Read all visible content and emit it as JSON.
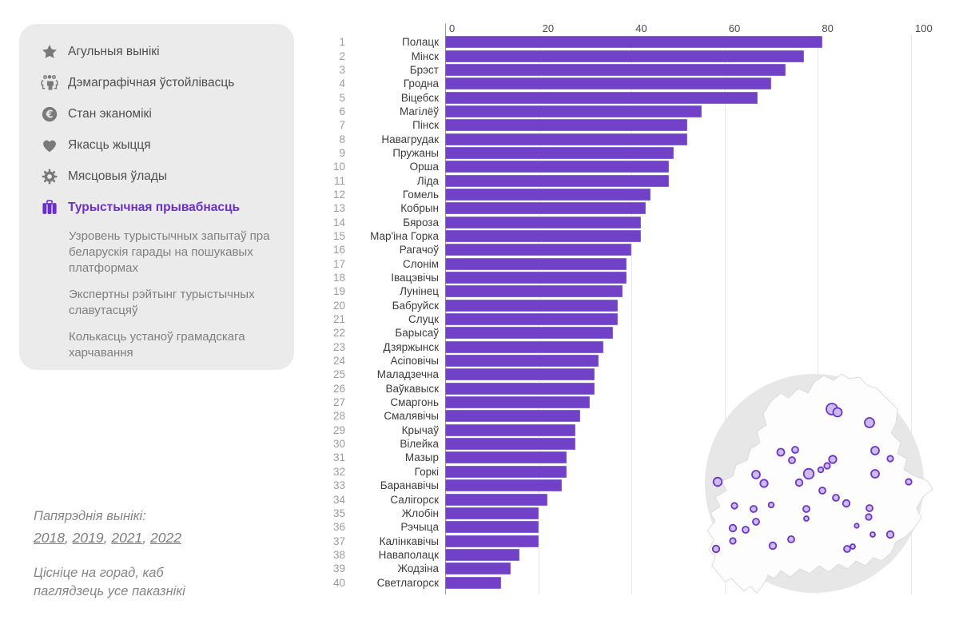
{
  "sidebar": {
    "items": [
      {
        "label": "Агульныя вынікі",
        "icon": "star-icon",
        "active": false
      },
      {
        "label": "Дэмаграфічная ўстойлівасць",
        "icon": "people-icon",
        "active": false
      },
      {
        "label": "Стан эканомікі",
        "icon": "euro-coin-icon",
        "active": false
      },
      {
        "label": "Якасць жыцця",
        "icon": "heart-icon",
        "active": false
      },
      {
        "label": "Мясцовыя ўлады",
        "icon": "gear-icon",
        "active": false
      },
      {
        "label": "Турыстычная прывабнасць",
        "icon": "suitcase-icon",
        "active": true
      }
    ],
    "subitems": [
      "Узровень турыстычных запытаў пра беларускія гарады на пошукавых платформах",
      "Экспертны рэйтынг турыстычных славутасцяў",
      "Колькасць устаноў грамадскага харчавання"
    ]
  },
  "footer": {
    "previous_label": "Папярэднія вынікі:",
    "years": [
      "2018",
      "2019",
      "2021",
      "2022"
    ],
    "hint": "Цісніце на горад, каб паглядзець усе паказнікі"
  },
  "chart_data": {
    "type": "bar",
    "orientation": "horizontal",
    "title": "",
    "xlabel": "",
    "ylabel": "",
    "xlim": [
      0,
      100
    ],
    "xticks": [
      0,
      20,
      40,
      60,
      80,
      100
    ],
    "grid": true,
    "bar_color": "#7142c8",
    "ranks": [
      1,
      2,
      3,
      4,
      5,
      6,
      7,
      8,
      9,
      10,
      11,
      12,
      13,
      14,
      15,
      16,
      17,
      18,
      19,
      20,
      21,
      22,
      23,
      24,
      25,
      26,
      27,
      28,
      29,
      30,
      31,
      32,
      33,
      34,
      35,
      36,
      37,
      38,
      39,
      40
    ],
    "categories": [
      "Полацк",
      "Мінск",
      "Брэст",
      "Гродна",
      "Віцебск",
      "Магілёў",
      "Пінск",
      "Навагрудак",
      "Пружаны",
      "Орша",
      "Ліда",
      "Гомель",
      "Кобрын",
      "Бяроза",
      "Мар'іна Горка",
      "Рагачоў",
      "Слонім",
      "Івацэвічы",
      "Лунінец",
      "Бабруйск",
      "Слуцк",
      "Барысаў",
      "Дзяржынск",
      "Асіповічы",
      "Маладзечна",
      "Ваўкавыск",
      "Смаргонь",
      "Смалявічы",
      "Крычаў",
      "Вілейка",
      "Мазыр",
      "Горкі",
      "Баранавічы",
      "Салігорск",
      "Жлобін",
      "Рэчыца",
      "Калінкавічы",
      "Наваполацк",
      "Жодзіна",
      "Светлагорск"
    ],
    "values": [
      81,
      77,
      73,
      70,
      67,
      55,
      52,
      52,
      49,
      48,
      48,
      44,
      43,
      42,
      42,
      40,
      39,
      39,
      38,
      37,
      37,
      36,
      34,
      33,
      32,
      32,
      31,
      29,
      28,
      28,
      26,
      26,
      25,
      22,
      20,
      20,
      20,
      16,
      14,
      12
    ]
  },
  "map": {
    "region": "Belarus",
    "background_color": "#e7e7e7",
    "country_fill": "#fdfdfd",
    "bubble_fill": "#cdbbee",
    "bubble_stroke": "#6b35c8",
    "bubbles": [
      [
        176,
        62,
        7
      ],
      [
        183,
        66,
        5.5
      ],
      [
        223,
        79,
        6
      ],
      [
        112,
        116,
        4.5
      ],
      [
        130,
        113,
        4
      ],
      [
        126,
        126,
        4
      ],
      [
        177,
        125,
        4.7
      ],
      [
        230,
        114,
        5
      ],
      [
        249,
        124,
        3.7
      ],
      [
        170,
        133,
        3.7
      ],
      [
        162,
        138,
        3.3
      ],
      [
        147,
        143,
        6.3
      ],
      [
        81,
        144,
        5
      ],
      [
        91,
        155,
        4.7
      ],
      [
        33,
        153,
        5.3
      ],
      [
        230,
        143,
        5
      ],
      [
        272,
        153,
        3.7
      ],
      [
        135,
        154,
        4.3
      ],
      [
        164,
        164,
        4
      ],
      [
        181,
        173,
        4
      ],
      [
        194,
        180,
        4.3
      ],
      [
        54,
        183,
        3.7
      ],
      [
        78,
        187,
        4
      ],
      [
        100,
        182,
        3.3
      ],
      [
        144,
        187,
        4
      ],
      [
        223,
        186,
        4
      ],
      [
        222,
        197,
        3.7
      ],
      [
        144,
        199,
        3
      ],
      [
        81,
        203,
        4
      ],
      [
        207,
        208,
        2.7
      ],
      [
        52,
        211,
        4.3
      ],
      [
        68,
        213,
        4
      ],
      [
        227,
        219,
        3
      ],
      [
        249,
        219,
        4.3
      ],
      [
        52,
        227,
        3.7
      ],
      [
        102,
        233,
        4.3
      ],
      [
        125,
        225,
        4
      ],
      [
        31,
        237,
        4.3
      ],
      [
        195,
        237,
        4
      ],
      [
        202,
        234,
        3
      ]
    ]
  },
  "colors": {
    "accent": "#6b2fc9",
    "sidebar_bg": "#ebebeb",
    "bar": "#7142c8"
  }
}
